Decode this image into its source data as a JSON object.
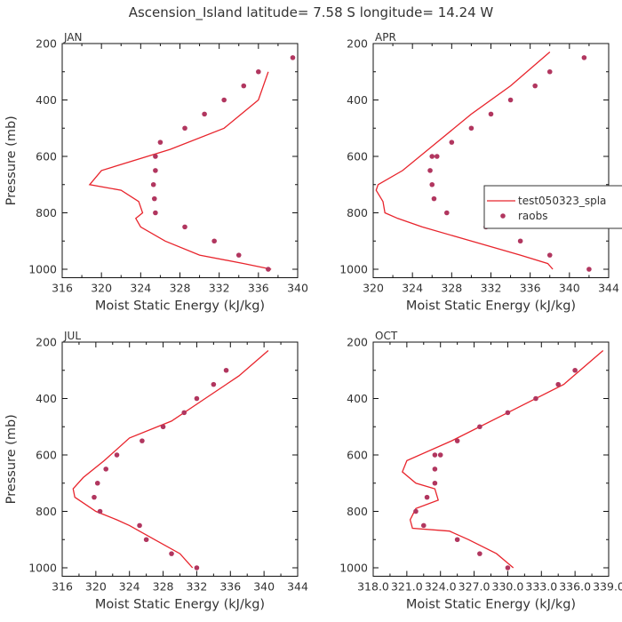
{
  "figure_title": "Ascension_Island  latitude= 7.58 S longitude= 14.24 W",
  "legend": {
    "entries": [
      {
        "label": "test050323_spla",
        "kind": "line",
        "color": "#e8242c"
      },
      {
        "label": "raobs",
        "kind": "marker",
        "color": "#b1365f"
      }
    ]
  },
  "chart_data": [
    {
      "type": "line",
      "panel": "JAN",
      "xlabel": "Moist Static Energy (kJ/kg)",
      "ylabel": "Pressure (mb)",
      "xlim": [
        316,
        340
      ],
      "ylim": [
        1000,
        200
      ],
      "y_inverted": true,
      "xticks": [
        "316",
        "320",
        "324",
        "328",
        "332",
        "336",
        "340"
      ],
      "yticks": [
        "200",
        "400",
        "600",
        "800",
        "1000"
      ],
      "series": [
        {
          "name": "test050323_spla",
          "kind": "line",
          "x": [
            337.3,
            334.5,
            330.0,
            326.5,
            324.0,
            323.5,
            324.2,
            323.8,
            322.0,
            318.8,
            320.0,
            327.0,
            332.5,
            336.0,
            337.0
          ],
          "y": [
            1000,
            980,
            950,
            900,
            850,
            820,
            800,
            760,
            720,
            700,
            650,
            575,
            500,
            400,
            300
          ]
        },
        {
          "name": "raobs",
          "kind": "scatter",
          "x": [
            337.0,
            334.0,
            331.5,
            328.5,
            325.5,
            325.4,
            325.3,
            325.5,
            325.5,
            326.0,
            328.5,
            330.5,
            332.5,
            334.5,
            336.0,
            339.5
          ],
          "y": [
            1000,
            950,
            900,
            850,
            800,
            750,
            700,
            650,
            600,
            550,
            500,
            450,
            400,
            350,
            300,
            250
          ]
        }
      ]
    },
    {
      "type": "line",
      "panel": "APR",
      "xlabel": "Moist Static Energy (kJ/kg)",
      "ylabel": "",
      "xlim": [
        320,
        344
      ],
      "ylim": [
        1000,
        200
      ],
      "y_inverted": true,
      "xticks": [
        "320",
        "324",
        "328",
        "332",
        "336",
        "340",
        "344"
      ],
      "yticks": [
        "200",
        "400",
        "600",
        "800",
        "1000"
      ],
      "series": [
        {
          "name": "test050323_spla",
          "kind": "line",
          "x": [
            338.3,
            337.8,
            335.0,
            330.0,
            325.0,
            322.5,
            321.2,
            321.0,
            320.3,
            320.5,
            323.0,
            326.5,
            330.0,
            334.0,
            338.0
          ],
          "y": [
            1000,
            980,
            950,
            900,
            850,
            820,
            800,
            760,
            720,
            700,
            650,
            550,
            450,
            350,
            230
          ]
        },
        {
          "name": "raobs",
          "kind": "scatter",
          "x": [
            342.0,
            338.0,
            335.0,
            331.5,
            327.5,
            326.2,
            326.0,
            325.8,
            326.0,
            326.5,
            328.0,
            330.0,
            332.0,
            334.0,
            336.5,
            338.0,
            341.5
          ],
          "y": [
            1000,
            950,
            900,
            850,
            800,
            750,
            700,
            650,
            600,
            600,
            550,
            500,
            450,
            400,
            350,
            300,
            250
          ]
        }
      ]
    },
    {
      "type": "line",
      "panel": "JUL",
      "xlabel": "Moist Static Energy (kJ/kg)",
      "ylabel": "Pressure (mb)",
      "xlim": [
        316,
        344
      ],
      "ylim": [
        1000,
        200
      ],
      "y_inverted": true,
      "xticks": [
        "316",
        "320",
        "324",
        "328",
        "332",
        "336",
        "340",
        "344"
      ],
      "yticks": [
        "200",
        "400",
        "600",
        "800",
        "1000"
      ],
      "series": [
        {
          "name": "test050323_spla",
          "kind": "line",
          "x": [
            331.5,
            330.0,
            327.0,
            324.0,
            322.5,
            320.0,
            317.5,
            317.3,
            318.5,
            321.0,
            324.0,
            329.0,
            333.0,
            337.0,
            340.5
          ],
          "y": [
            1000,
            950,
            900,
            850,
            830,
            800,
            750,
            720,
            680,
            620,
            540,
            480,
            400,
            320,
            230
          ]
        },
        {
          "name": "raobs",
          "kind": "scatter",
          "x": [
            332.0,
            329.0,
            326.0,
            325.2,
            320.5,
            319.8,
            320.2,
            321.2,
            322.5,
            325.5,
            328.0,
            330.5,
            332.0,
            334.0,
            335.5
          ],
          "y": [
            1000,
            950,
            900,
            850,
            800,
            750,
            700,
            650,
            600,
            550,
            500,
            450,
            400,
            350,
            300
          ]
        }
      ]
    },
    {
      "type": "line",
      "panel": "OCT",
      "xlabel": "Moist Static Energy (kJ/kg)",
      "ylabel": "",
      "xlim": [
        318.0,
        339.0
      ],
      "ylim": [
        1000,
        200
      ],
      "y_inverted": true,
      "xticks": [
        "318.0",
        "321.0",
        "324.0",
        "327.0",
        "330.0",
        "333.0",
        "336.0",
        "339.0"
      ],
      "yticks": [
        "200",
        "400",
        "600",
        "800",
        "1000"
      ],
      "series": [
        {
          "name": "test050323_spla",
          "kind": "line",
          "x": [
            330.5,
            329.0,
            326.5,
            324.8,
            321.5,
            321.3,
            321.8,
            323.8,
            323.5,
            321.8,
            320.6,
            321.0,
            325.0,
            330.0,
            335.0,
            338.5
          ],
          "y": [
            1000,
            950,
            900,
            870,
            860,
            830,
            790,
            760,
            720,
            700,
            660,
            620,
            550,
            450,
            350,
            230
          ]
        },
        {
          "name": "raobs",
          "kind": "scatter",
          "x": [
            330.0,
            327.5,
            325.5,
            322.5,
            321.8,
            322.8,
            323.5,
            323.5,
            323.5,
            324.0,
            325.5,
            327.5,
            330.0,
            332.5,
            334.5,
            336.0
          ],
          "y": [
            1000,
            950,
            900,
            850,
            800,
            750,
            700,
            650,
            600,
            600,
            550,
            500,
            450,
            400,
            350,
            300
          ]
        }
      ]
    }
  ]
}
